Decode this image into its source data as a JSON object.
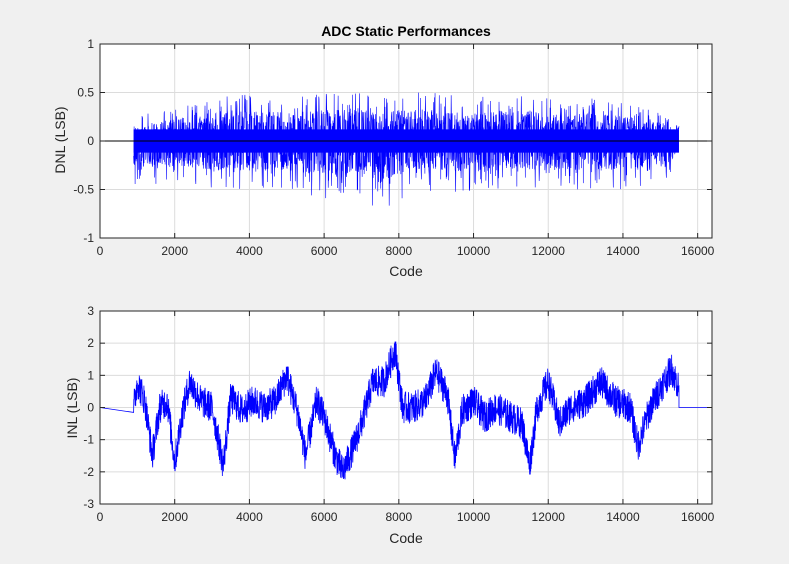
{
  "chart_data": [
    {
      "type": "line",
      "title": "ADC Static Performances",
      "xlabel": "Code",
      "ylabel": "DNL (LSB)",
      "xlim": [
        0,
        16384
      ],
      "ylim": [
        -1,
        1
      ],
      "xticks": [
        0,
        2000,
        4000,
        6000,
        8000,
        10000,
        12000,
        14000,
        16000
      ],
      "yticks": [
        -1,
        -0.5,
        0,
        0.5,
        1
      ],
      "ytick_labels": [
        "-1",
        "-0.5",
        "0",
        "0.5",
        "1"
      ],
      "grid": true,
      "series": [
        {
          "color": "#0000ff",
          "style": "dense noise band",
          "x_range": [
            900,
            15500
          ],
          "envelope": {
            "x": [
              900,
              2000,
              3000,
              4000,
              5000,
              6000,
              7000,
              7500,
              8000,
              9000,
              10000,
              11000,
              12000,
              13000,
              14000,
              15000,
              15500
            ],
            "upper": [
              0.25,
              0.35,
              0.45,
              0.5,
              0.45,
              0.5,
              0.5,
              0.45,
              0.5,
              0.5,
              0.45,
              0.5,
              0.45,
              0.45,
              0.4,
              0.3,
              0.25
            ],
            "lower": [
              -0.5,
              -0.45,
              -0.5,
              -0.5,
              -0.5,
              -0.6,
              -0.55,
              -0.75,
              -0.6,
              -0.5,
              -0.55,
              -0.5,
              -0.5,
              -0.5,
              -0.5,
              -0.45,
              -0.35
            ]
          }
        }
      ],
      "reference_line": 0
    },
    {
      "type": "line",
      "title": "",
      "xlabel": "Code",
      "ylabel": "INL (LSB)",
      "xlim": [
        0,
        16384
      ],
      "ylim": [
        -3,
        3
      ],
      "xticks": [
        0,
        2000,
        4000,
        6000,
        8000,
        10000,
        12000,
        14000,
        16000
      ],
      "yticks": [
        -3,
        -2,
        -1,
        0,
        1,
        2,
        3
      ],
      "ytick_labels": [
        "-3",
        "-2",
        "-1",
        "0",
        "1",
        "2",
        "3"
      ],
      "grid": true,
      "series": [
        {
          "color": "#0000ff",
          "x": [
            0,
            900,
            1000,
            1100,
            1200,
            1400,
            1600,
            1800,
            2000,
            2200,
            2400,
            2700,
            3000,
            3300,
            3500,
            3800,
            4100,
            4400,
            4700,
            5000,
            5300,
            5500,
            5800,
            6000,
            6300,
            6500,
            6800,
            7000,
            7300,
            7600,
            7900,
            8100,
            8400,
            8700,
            9000,
            9300,
            9500,
            9700,
            10000,
            10300,
            10600,
            11000,
            11300,
            11500,
            11700,
            12000,
            12300,
            12600,
            13000,
            13400,
            13800,
            14200,
            14400,
            14700,
            15000,
            15300,
            15500,
            16384
          ],
          "y": [
            0,
            0,
            0.8,
            0.5,
            0.2,
            -1.5,
            0.0,
            0.2,
            -1.7,
            -0.2,
            0.8,
            0.2,
            0.0,
            -1.8,
            0.3,
            -0.1,
            0.2,
            0.0,
            0.2,
            1.0,
            -0.2,
            -1.5,
            0.2,
            -0.3,
            -1.5,
            -2.0,
            -1.2,
            -0.5,
            0.8,
            0.8,
            1.8,
            0.0,
            0.0,
            0.2,
            1.1,
            0.4,
            -1.6,
            -0.1,
            0.2,
            -0.3,
            0.0,
            -0.3,
            -0.5,
            -1.8,
            0.0,
            0.8,
            -0.5,
            0.0,
            0.2,
            0.8,
            0.2,
            0.0,
            -1.2,
            -0.1,
            0.6,
            1.2,
            0.6,
            0
          ]
        }
      ]
    }
  ]
}
